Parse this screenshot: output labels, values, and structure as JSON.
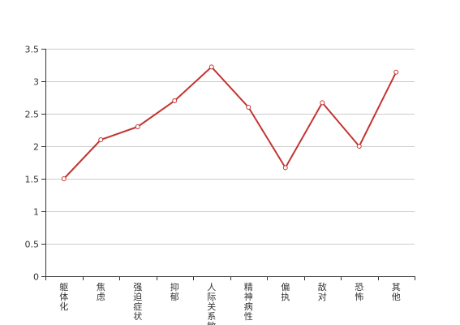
{
  "chart_data": {
    "type": "line",
    "categories": [
      "躯体化",
      "焦虑",
      "强迫症状",
      "抑郁",
      "人际关系敏感",
      "精神病性",
      "偏执",
      "敌对",
      "恐怖",
      "其他"
    ],
    "series": [
      {
        "values": [
          1.5,
          2.1,
          2.3,
          2.7,
          3.22,
          2.6,
          1.67,
          2.67,
          2.0,
          3.14
        ]
      }
    ],
    "yticks": [
      "0",
      "0.5",
      "1",
      "1.5",
      "2",
      "2.5",
      "3",
      "3.5"
    ],
    "ylim": [
      0,
      3.5
    ],
    "grid": true,
    "colors": {
      "line": "#c23531",
      "grid": "#cccccc",
      "axis": "#333333",
      "text": "#333333"
    }
  }
}
